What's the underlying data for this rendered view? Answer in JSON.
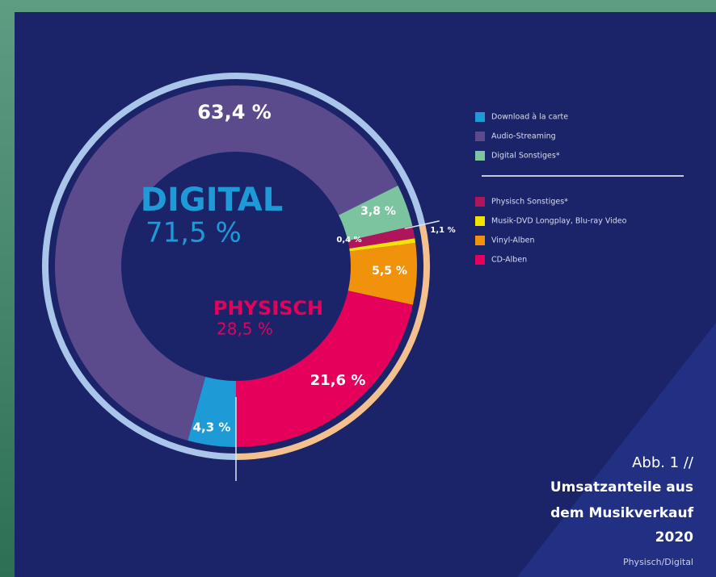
{
  "chart_data": {
    "type": "donut",
    "series": [
      {
        "name": "Download à la carte",
        "color": "#1e9ad6",
        "value": 4.3,
        "value_label": "4,3 %"
      },
      {
        "name": "Audio-Streaming",
        "color": "#5b4b8c",
        "value": 63.4,
        "value_label": "63,4 %"
      },
      {
        "name": "Digital Sonstiges*",
        "color": "#7cc4a0",
        "value": 3.8,
        "value_label": "3,8 %"
      },
      {
        "name": "Physisch Sonstiges*",
        "color": "#b0155c",
        "value": 1.1,
        "value_label": "1,1 %"
      },
      {
        "name": "Musik-DVD Longplay, Blu-ray Video",
        "color": "#f3e300",
        "value": 0.4,
        "value_label": "0,4 %"
      },
      {
        "name": "Vinyl-Alben",
        "color": "#f0920c",
        "value": 5.5,
        "value_label": "5,5 %"
      },
      {
        "name": "CD-Alben",
        "color": "#e5005c",
        "value": 21.6,
        "value_label": "21,6 %"
      }
    ],
    "groups": [
      {
        "name": "DIGITAL",
        "value": 71.5,
        "value_label": "71,5 %",
        "color": "#1e9ad6",
        "ring_color": "#a9c6ea"
      },
      {
        "name": "PHYSISCH",
        "value": 28.5,
        "value_label": "28,5 %",
        "color": "#e5005c",
        "ring_color": "#f3c08e"
      }
    ],
    "caption": [
      "Abb. 1 //",
      "Umsatzanteile aus",
      "dem Musikverkauf",
      "2020",
      "Physisch/Digital"
    ]
  }
}
